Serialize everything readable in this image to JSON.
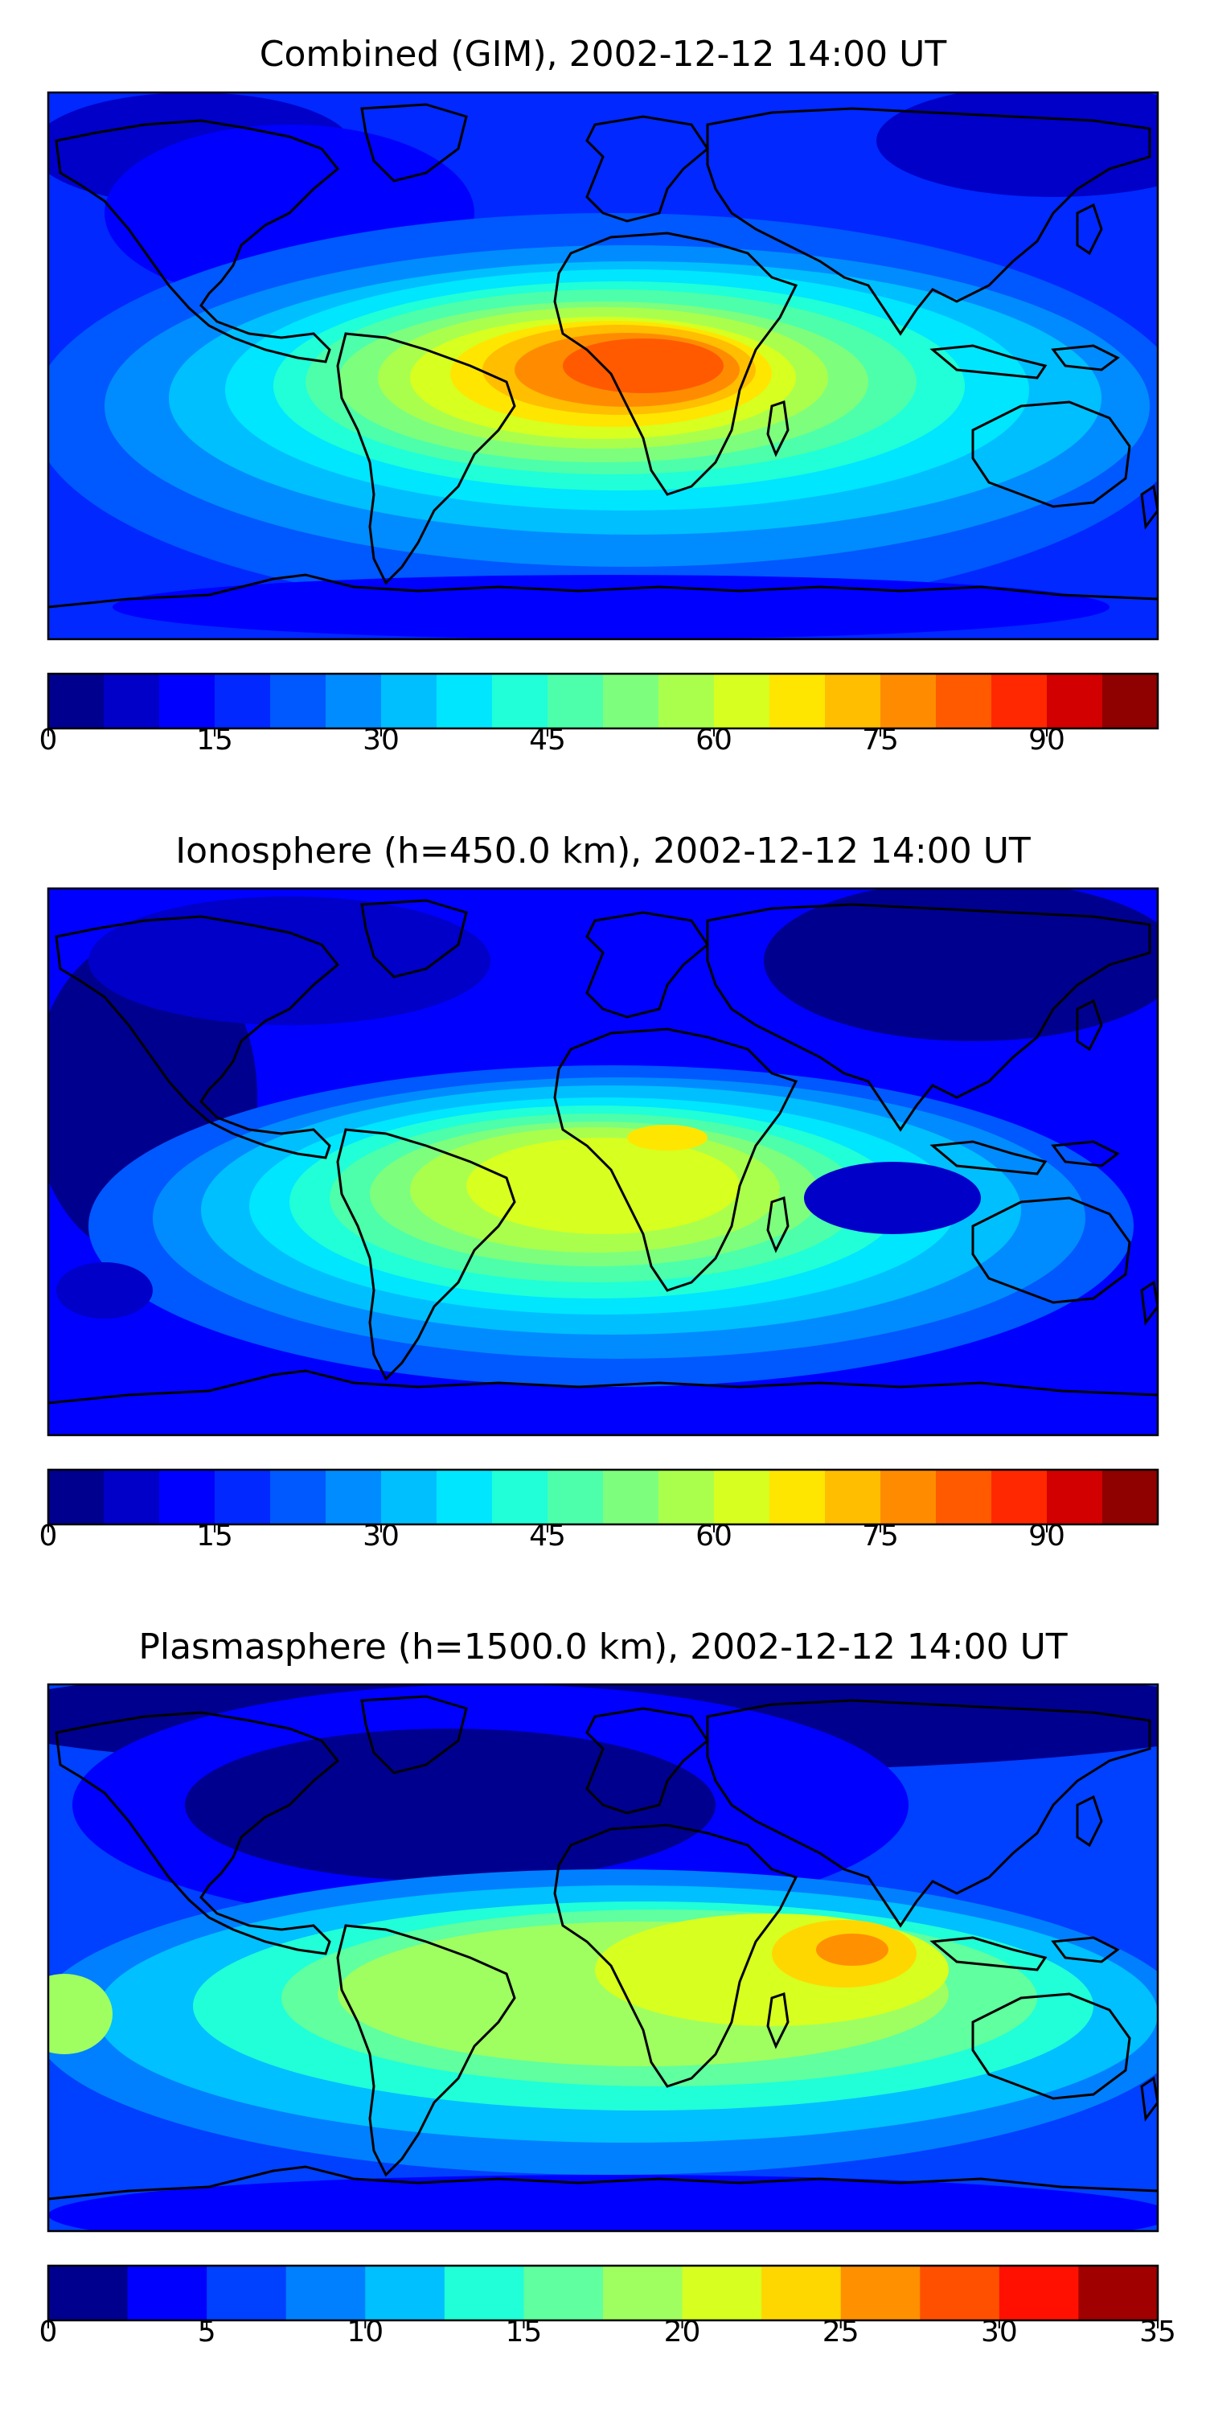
{
  "panels": [
    {
      "id": "combined",
      "title": "Combined (GIM), 2002-12-12 14:00 UT",
      "colorbar": {
        "vmin": 0,
        "vmax": 100,
        "ticks": [
          0,
          15,
          30,
          45,
          60,
          75,
          90
        ],
        "colors": [
          "#00008f",
          "#0000c8",
          "#0000ff",
          "#0028ff",
          "#0058ff",
          "#008cff",
          "#00bfff",
          "#00e6ff",
          "#20ffd7",
          "#4dffaa",
          "#7dff7d",
          "#aaff4d",
          "#d7ff20",
          "#ffe600",
          "#ffbe00",
          "#ff8c00",
          "#ff5a00",
          "#ff2800",
          "#d20000",
          "#8f0000"
        ]
      },
      "features": [
        "equatorial TEC maximum over Africa and South America (~75-85)",
        "low values at high latitudes and Pacific"
      ]
    },
    {
      "id": "ionosphere",
      "title": "Ionosphere  (h=450.0 km), 2002-12-12 14:00 UT",
      "colorbar": {
        "vmin": 0,
        "vmax": 100,
        "ticks": [
          0,
          15,
          30,
          45,
          60,
          75,
          90
        ],
        "colors": [
          "#00008f",
          "#0000c8",
          "#0000ff",
          "#0028ff",
          "#0058ff",
          "#008cff",
          "#00bfff",
          "#00e6ff",
          "#20ffd7",
          "#4dffaa",
          "#7dff7d",
          "#aaff4d",
          "#d7ff20",
          "#ffe600",
          "#ffbe00",
          "#ff8c00",
          "#ff5a00",
          "#ff2800",
          "#d20000",
          "#8f0000"
        ]
      },
      "features": [
        "maximum over Africa / Atlantic (~60-70)",
        "minimum near Indonesia"
      ]
    },
    {
      "id": "plasmasphere",
      "title": "Plasmasphere (h=1500.0 km), 2002-12-12 14:00 UT",
      "colorbar": {
        "vmin": 0,
        "vmax": 35,
        "ticks": [
          0,
          5,
          10,
          15,
          20,
          25,
          30,
          35
        ],
        "colors": [
          "#00008f",
          "#0000ff",
          "#0040ff",
          "#0080ff",
          "#00c0ff",
          "#20ffd7",
          "#60ff9f",
          "#9fff60",
          "#d7ff20",
          "#ffd700",
          "#ff9000",
          "#ff5000",
          "#ff1000",
          "#a00000"
        ]
      },
      "features": [
        "maximum over India (~25-27)",
        "low values over North America / Northern Europe"
      ]
    }
  ]
}
